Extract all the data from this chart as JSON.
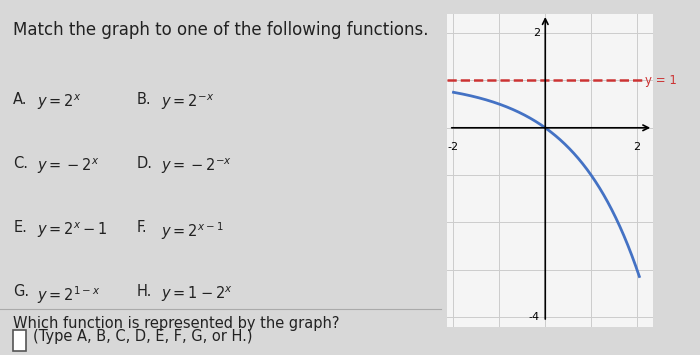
{
  "title": "Match the graph to one of the following functions.",
  "question": "Which function is represented by the graph?",
  "answer_hint": "(Type A, B, C, D, E, F, G, or H.)",
  "graph": {
    "xlim": [
      -2,
      2
    ],
    "ylim": [
      -4,
      2
    ],
    "xticks": [
      -2,
      -1,
      0,
      1,
      2
    ],
    "yticks": [
      -4,
      -3,
      -2,
      -1,
      0,
      1,
      2
    ],
    "curve_color": "#4472C4",
    "dashed_color": "#CC3333",
    "dashed_y": 1,
    "asymptote_label": "y = 1"
  },
  "bg_color": "#d8d8d8",
  "panel_color": "#e0e0e0",
  "graph_bg_color": "#f5f5f5",
  "text_color": "#222222",
  "font_size_title": 12,
  "font_size_options": 10.5,
  "font_size_question": 10.5
}
